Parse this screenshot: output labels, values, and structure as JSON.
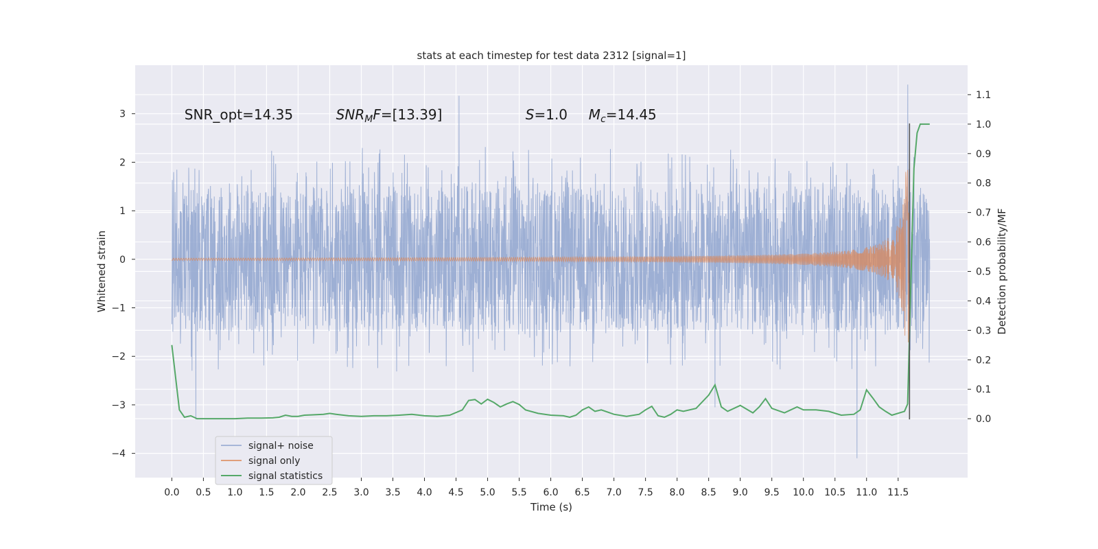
{
  "chart_data": {
    "type": "line",
    "title": "stats at each timestep for test data 2312 [signal=1]",
    "xlabel": "Time (s)",
    "ylabel": "Whitened strain",
    "y2label": "Detection probability/MF",
    "xlim": [
      -0.58,
      12.6
    ],
    "ylim": [
      -4.5,
      4.0
    ],
    "y2lim": [
      -0.2,
      1.2
    ],
    "xticks": [
      0.0,
      0.5,
      1.0,
      1.5,
      2.0,
      2.5,
      3.0,
      3.5,
      4.0,
      4.5,
      5.0,
      5.5,
      6.0,
      6.5,
      7.0,
      7.5,
      8.0,
      8.5,
      9.0,
      9.5,
      10.0,
      10.5,
      11.0,
      11.5
    ],
    "xtick_labels": [
      "0.0",
      "0.5",
      "1.0",
      "1.5",
      "2.0",
      "2.5",
      "3.0",
      "3.5",
      "4.0",
      "4.5",
      "5.0",
      "5.5",
      "6.0",
      "6.5",
      "7.0",
      "7.5",
      "8.0",
      "8.5",
      "9.0",
      "9.5",
      "10.0",
      "10.5",
      "11.0",
      "11.5"
    ],
    "yticks": [
      -4,
      -3,
      -2,
      -1,
      0,
      1,
      2,
      3
    ],
    "ytick_labels": [
      "−4",
      "−3",
      "−2",
      "−1",
      "0",
      "1",
      "2",
      "3"
    ],
    "y2ticks": [
      0.0,
      0.1,
      0.2,
      0.3,
      0.4,
      0.5,
      0.6,
      0.7,
      0.8,
      0.9,
      1.0,
      1.1
    ],
    "y2tick_labels": [
      "0.0",
      "0.1",
      "0.2",
      "0.3",
      "0.4",
      "0.5",
      "0.6",
      "0.7",
      "0.8",
      "0.9",
      "1.0",
      "1.1"
    ],
    "grid": true,
    "legend_position": "lower-left",
    "annotations": [
      {
        "parts": [
          {
            "t": "SNR_opt=14.35",
            "style": "normal"
          }
        ],
        "x": 0.2,
        "y": 2.88
      },
      {
        "parts": [
          {
            "t": "SNR",
            "style": "italic"
          },
          {
            "t": "M",
            "style": "italic-sub"
          },
          {
            "t": "F",
            "style": "italic"
          },
          {
            "t": "=[13.39]",
            "style": "normal"
          }
        ],
        "x": 2.6,
        "y": 2.88
      },
      {
        "parts": [
          {
            "t": "S",
            "style": "italic"
          },
          {
            "t": "=1.0",
            "style": "normal"
          }
        ],
        "x": 5.6,
        "y": 2.88
      },
      {
        "parts": [
          {
            "t": "M",
            "style": "italic"
          },
          {
            "t": "c",
            "style": "italic-sub"
          },
          {
            "t": "=14.45",
            "style": "normal"
          }
        ],
        "x": 6.6,
        "y": 2.88
      }
    ],
    "series": [
      {
        "name": "signal+ noise",
        "color": "#8fa5cf",
        "axis": "left",
        "description_values": "whitened strain noise, band about ±1.5 with peaks to ±2.5; extremes 3.37 at 4.55 s, 3.6 at 11.65 s, −4.1 at 10.85 s",
        "t_range": [
          0.0,
          12.0
        ],
        "envelope": 1.5,
        "extremes": [
          {
            "x": 4.55,
            "y": 3.37
          },
          {
            "x": 11.65,
            "y": 3.6
          },
          {
            "x": 10.85,
            "y": -4.1
          },
          {
            "x": 0.38,
            "y": -3.3
          },
          {
            "x": 8.6,
            "y": -3.05
          }
        ]
      },
      {
        "name": "signal only",
        "color": "#dd8452",
        "axis": "left",
        "t_range": [
          0.0,
          11.68
        ],
        "chirp_merger_time": 11.68,
        "amplitude_at_8s": 0.03,
        "amplitude_at_11s": 0.25,
        "amplitude_peak": 1.85
      },
      {
        "name": "signal statistics",
        "color": "#55a868",
        "axis": "right",
        "x": [
          0.0,
          0.12,
          0.2,
          0.3,
          0.4,
          0.5,
          0.8,
          1.0,
          1.2,
          1.4,
          1.6,
          1.7,
          1.8,
          1.9,
          2.0,
          2.1,
          2.2,
          2.4,
          2.5,
          2.6,
          2.8,
          3.0,
          3.2,
          3.4,
          3.6,
          3.8,
          4.0,
          4.2,
          4.4,
          4.6,
          4.7,
          4.8,
          4.9,
          5.0,
          5.1,
          5.2,
          5.3,
          5.4,
          5.5,
          5.6,
          5.8,
          6.0,
          6.2,
          6.3,
          6.4,
          6.5,
          6.6,
          6.7,
          6.8,
          7.0,
          7.2,
          7.4,
          7.5,
          7.6,
          7.7,
          7.8,
          7.9,
          8.0,
          8.1,
          8.3,
          8.5,
          8.6,
          8.7,
          8.8,
          9.0,
          9.2,
          9.3,
          9.4,
          9.5,
          9.7,
          9.9,
          10.0,
          10.2,
          10.4,
          10.6,
          10.8,
          10.9,
          11.0,
          11.1,
          11.2,
          11.3,
          11.4,
          11.6,
          11.65,
          11.7,
          11.75,
          11.8,
          11.85,
          11.9,
          12.0
        ],
        "values": [
          0.25,
          0.03,
          0.005,
          0.01,
          0.0,
          0.0,
          0.0,
          0.0,
          0.002,
          0.002,
          0.003,
          0.005,
          0.012,
          0.008,
          0.008,
          0.012,
          0.013,
          0.015,
          0.018,
          0.015,
          0.01,
          0.008,
          0.01,
          0.01,
          0.012,
          0.015,
          0.01,
          0.008,
          0.012,
          0.03,
          0.062,
          0.065,
          0.05,
          0.066,
          0.055,
          0.04,
          0.05,
          0.058,
          0.048,
          0.03,
          0.018,
          0.012,
          0.01,
          0.005,
          0.012,
          0.03,
          0.04,
          0.025,
          0.03,
          0.015,
          0.008,
          0.015,
          0.03,
          0.042,
          0.01,
          0.005,
          0.015,
          0.03,
          0.025,
          0.035,
          0.08,
          0.115,
          0.04,
          0.025,
          0.045,
          0.02,
          0.04,
          0.068,
          0.035,
          0.02,
          0.04,
          0.03,
          0.03,
          0.025,
          0.012,
          0.015,
          0.03,
          0.098,
          0.07,
          0.04,
          0.025,
          0.012,
          0.025,
          0.05,
          0.45,
          0.85,
          0.97,
          1.0,
          1.0,
          1.0
        ]
      }
    ],
    "vline": {
      "x": 11.68,
      "y_from": -3.3,
      "y_to": 2.8,
      "color": "#555555"
    },
    "legend": [
      {
        "label": "signal+ noise",
        "color": "#8fa5cf"
      },
      {
        "label": "signal only",
        "color": "#dd8452"
      },
      {
        "label": "signal statistics",
        "color": "#55a868"
      }
    ]
  }
}
